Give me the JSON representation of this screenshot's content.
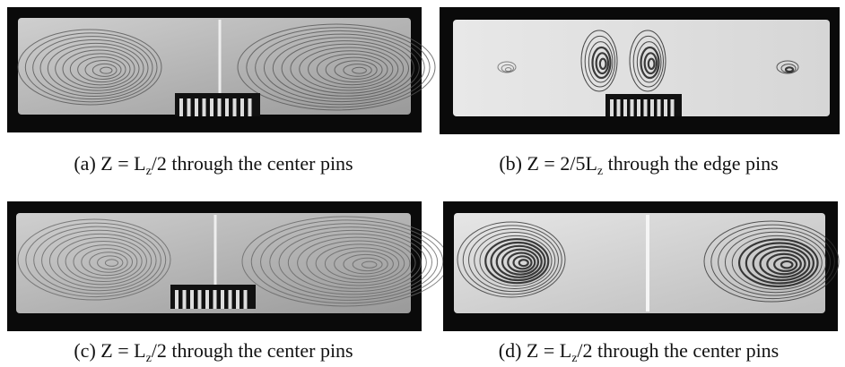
{
  "figure": {
    "panels": [
      {
        "caption": {
          "pre": "(a) Z = L",
          "sub": "z",
          "post": "/2 through the center pins"
        }
      },
      {
        "caption": {
          "pre": "(b) Z = 2/5L",
          "sub": "z",
          "post": " through the edge pins"
        }
      },
      {
        "caption": {
          "pre": "(c) Z = L",
          "sub": "z",
          "post": "/2 through the center pins"
        }
      },
      {
        "caption": {
          "pre": "(d) Z = L",
          "sub": "z",
          "post": "/2 through the center pins"
        }
      }
    ]
  }
}
